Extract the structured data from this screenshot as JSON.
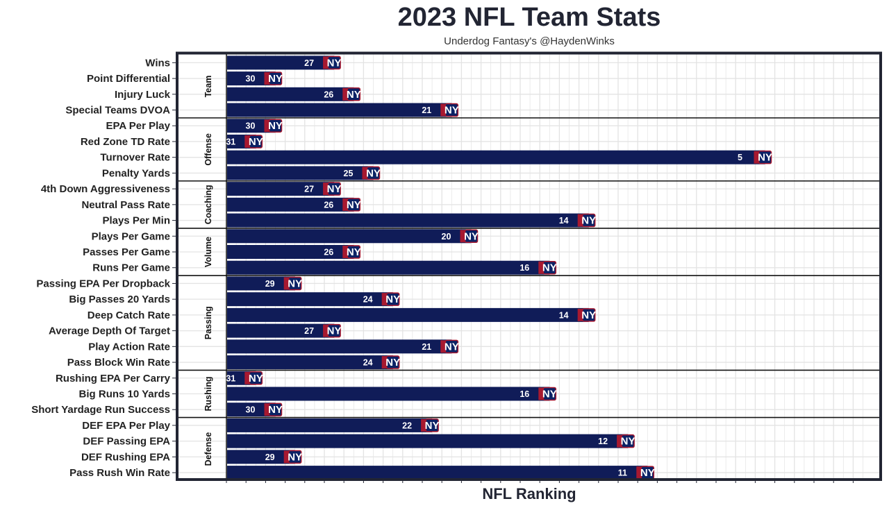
{
  "chart_data": {
    "type": "bar",
    "orientation": "horizontal",
    "title": "2023 NFL Team Stats",
    "subtitle": "Underdog Fantasy's @HaydenWinks",
    "xlabel": "NFL Ranking",
    "ylabel": "",
    "x_axis": "reversed rank, 32 = shortest bar, 1 = longest bar",
    "xlim": [
      32.5,
      0.5
    ],
    "grid": true,
    "legend": "none",
    "team_logo_text": "NY",
    "colors": {
      "bar": "#101c58",
      "logo_red": "#a71930",
      "logo_blue": "#0b2265",
      "panel_border": "#222533",
      "grid": "#e3e3e3",
      "separator": "#111111"
    },
    "groups": [
      {
        "name": "Team",
        "items": [
          {
            "label": "Wins",
            "rank": 27
          },
          {
            "label": "Point Differential",
            "rank": 30
          },
          {
            "label": "Injury Luck",
            "rank": 26
          },
          {
            "label": "Special Teams DVOA",
            "rank": 21
          }
        ]
      },
      {
        "name": "Offense",
        "items": [
          {
            "label": "EPA Per Play",
            "rank": 30
          },
          {
            "label": "Red Zone TD Rate",
            "rank": 31
          },
          {
            "label": "Turnover Rate",
            "rank": 5
          },
          {
            "label": "Penalty Yards",
            "rank": 25
          }
        ]
      },
      {
        "name": "Coaching",
        "items": [
          {
            "label": "4th Down Aggressiveness",
            "rank": 27
          },
          {
            "label": "Neutral Pass Rate",
            "rank": 26
          },
          {
            "label": "Plays Per Min",
            "rank": 14
          }
        ]
      },
      {
        "name": "Volume",
        "items": [
          {
            "label": "Plays Per Game",
            "rank": 20
          },
          {
            "label": "Passes Per Game",
            "rank": 26
          },
          {
            "label": "Runs Per Game",
            "rank": 16
          }
        ]
      },
      {
        "name": "Passing",
        "items": [
          {
            "label": "Passing EPA Per Dropback",
            "rank": 29
          },
          {
            "label": "Big Passes 20 Yards",
            "rank": 24
          },
          {
            "label": "Deep Catch Rate",
            "rank": 14
          },
          {
            "label": "Average Depth Of Target",
            "rank": 27
          },
          {
            "label": "Play Action Rate",
            "rank": 21
          },
          {
            "label": "Pass Block Win Rate",
            "rank": 24
          }
        ]
      },
      {
        "name": "Rushing",
        "items": [
          {
            "label": "Rushing EPA Per Carry",
            "rank": 31
          },
          {
            "label": "Big Runs 10 Yards",
            "rank": 16
          },
          {
            "label": "Short Yardage Run Success",
            "rank": 30
          }
        ]
      },
      {
        "name": "Defense",
        "items": [
          {
            "label": "DEF EPA Per Play",
            "rank": 22
          },
          {
            "label": "DEF Passing EPA",
            "rank": 12
          },
          {
            "label": "DEF Rushing EPA",
            "rank": 29
          },
          {
            "label": "Pass Rush Win Rate",
            "rank": 11
          }
        ]
      }
    ]
  }
}
